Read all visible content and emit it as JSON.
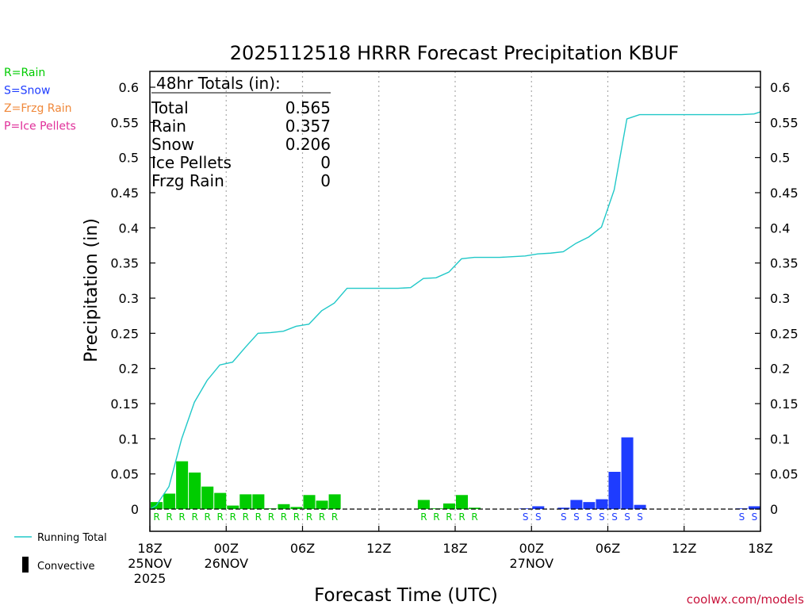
{
  "colors": {
    "rain": "#00cc00",
    "snow": "#1e3cff",
    "frzg": "#f0883a",
    "ice": "#e0309a",
    "running": "#20c8c8",
    "grid": "#aaaaaa"
  },
  "chart_data": {
    "type": "bar",
    "title": "2025112518 HRRR Forecast Precipitation KBUF",
    "xlabel": "Forecast Time (UTC)",
    "ylabel": "Precipitation  (in)",
    "ylim": [
      0,
      0.625
    ],
    "xlim_hours": [
      0,
      48
    ],
    "y_ticks": [
      "0",
      "0.05",
      "0.1",
      "0.15",
      "0.2",
      "0.25",
      "0.3",
      "0.35",
      "0.4",
      "0.45",
      "0.5",
      "0.55",
      "0.6"
    ],
    "x_ticks": [
      {
        "hour": 0,
        "lines": [
          "18Z",
          "25NOV",
          "2025"
        ]
      },
      {
        "hour": 6,
        "lines": [
          "00Z",
          "26NOV"
        ]
      },
      {
        "hour": 12,
        "lines": [
          "06Z"
        ]
      },
      {
        "hour": 18,
        "lines": [
          "12Z"
        ]
      },
      {
        "hour": 24,
        "lines": [
          "18Z"
        ]
      },
      {
        "hour": 30,
        "lines": [
          "00Z",
          "27NOV"
        ]
      },
      {
        "hour": 36,
        "lines": [
          "06Z"
        ]
      },
      {
        "hour": 42,
        "lines": [
          "12Z"
        ]
      },
      {
        "hour": 48,
        "lines": [
          "18Z"
        ]
      }
    ],
    "grid": "vertical-dotted",
    "legend_left": [
      {
        "label": "R=Rain",
        "color": "#00cc00"
      },
      {
        "label": "S=Snow",
        "color": "#1e3cff"
      },
      {
        "label": "Z=Frzg Rain",
        "color": "#f0883a"
      },
      {
        "label": "P=Ice Pellets",
        "color": "#e0309a"
      }
    ],
    "legend_bottom": [
      {
        "label": "Running Total",
        "kind": "line"
      },
      {
        "label": "Convective",
        "kind": "bar"
      }
    ],
    "totals_box": {
      "heading": "48hr Totals (in):",
      "rows": [
        {
          "label": "Total",
          "value": "0.565"
        },
        {
          "label": "Rain",
          "value": "0.357"
        },
        {
          "label": "Snow",
          "value": "0.206"
        },
        {
          "label": "Ice Pellets",
          "value": "0"
        },
        {
          "label": "Frzg Rain",
          "value": "0"
        }
      ]
    },
    "hourly": [
      {
        "h": 1,
        "v": 0.01,
        "t": "R"
      },
      {
        "h": 2,
        "v": 0.022,
        "t": "R"
      },
      {
        "h": 3,
        "v": 0.068,
        "t": "R"
      },
      {
        "h": 4,
        "v": 0.052,
        "t": "R"
      },
      {
        "h": 5,
        "v": 0.032,
        "t": "R"
      },
      {
        "h": 6,
        "v": 0.023,
        "t": "R"
      },
      {
        "h": 7,
        "v": 0.005,
        "t": "R"
      },
      {
        "h": 8,
        "v": 0.021,
        "t": "R"
      },
      {
        "h": 9,
        "v": 0.021,
        "t": "R"
      },
      {
        "h": 10,
        "v": 0.001,
        "t": "R"
      },
      {
        "h": 11,
        "v": 0.007,
        "t": "R"
      },
      {
        "h": 12,
        "v": 0.003,
        "t": "R"
      },
      {
        "h": 13,
        "v": 0.02,
        "t": "R"
      },
      {
        "h": 14,
        "v": 0.012,
        "t": "R"
      },
      {
        "h": 15,
        "v": 0.021,
        "t": "R"
      },
      {
        "h": 22,
        "v": 0.013,
        "t": "R"
      },
      {
        "h": 23,
        "v": 0.001,
        "t": "R"
      },
      {
        "h": 24,
        "v": 0.008,
        "t": "R"
      },
      {
        "h": 25,
        "v": 0.02,
        "t": "R"
      },
      {
        "h": 26,
        "v": 0.002,
        "t": "R"
      },
      {
        "h": 30,
        "v": 0.001,
        "t": "S"
      },
      {
        "h": 31,
        "v": 0.004,
        "t": "S"
      },
      {
        "h": 33,
        "v": 0.002,
        "t": "S"
      },
      {
        "h": 34,
        "v": 0.013,
        "t": "S"
      },
      {
        "h": 35,
        "v": 0.01,
        "t": "S"
      },
      {
        "h": 36,
        "v": 0.014,
        "t": "S"
      },
      {
        "h": 37,
        "v": 0.053,
        "t": "S"
      },
      {
        "h": 38,
        "v": 0.102,
        "t": "S"
      },
      {
        "h": 39,
        "v": 0.006,
        "t": "S"
      },
      {
        "h": 47,
        "v": 0.001,
        "t": "S"
      },
      {
        "h": 48,
        "v": 0.004,
        "t": "S"
      }
    ],
    "running_total": [
      [
        0,
        0
      ],
      [
        0.5,
        0.005
      ],
      [
        1.5,
        0.032
      ],
      [
        2.5,
        0.1
      ],
      [
        3.5,
        0.152
      ],
      [
        4.5,
        0.183
      ],
      [
        5.5,
        0.205
      ],
      [
        6.5,
        0.209
      ],
      [
        7.5,
        0.23
      ],
      [
        8.5,
        0.25
      ],
      [
        9.5,
        0.251
      ],
      [
        10.5,
        0.253
      ],
      [
        11.5,
        0.26
      ],
      [
        12.5,
        0.263
      ],
      [
        13.5,
        0.282
      ],
      [
        14.5,
        0.293
      ],
      [
        15.5,
        0.314
      ],
      [
        16.5,
        0.314
      ],
      [
        17.5,
        0.314
      ],
      [
        18.5,
        0.314
      ],
      [
        19.5,
        0.314
      ],
      [
        20.5,
        0.315
      ],
      [
        21.5,
        0.328
      ],
      [
        22.5,
        0.329
      ],
      [
        23.5,
        0.337
      ],
      [
        24.5,
        0.356
      ],
      [
        25.5,
        0.358
      ],
      [
        26.5,
        0.358
      ],
      [
        27.5,
        0.358
      ],
      [
        28.5,
        0.359
      ],
      [
        29.5,
        0.36
      ],
      [
        30.5,
        0.363
      ],
      [
        31.5,
        0.364
      ],
      [
        32.5,
        0.366
      ],
      [
        33.5,
        0.378
      ],
      [
        34.5,
        0.387
      ],
      [
        35.5,
        0.401
      ],
      [
        36.5,
        0.454
      ],
      [
        37.5,
        0.555
      ],
      [
        38.5,
        0.561
      ],
      [
        39.5,
        0.561
      ],
      [
        40.5,
        0.561
      ],
      [
        41.5,
        0.561
      ],
      [
        42.5,
        0.561
      ],
      [
        43.5,
        0.561
      ],
      [
        44.5,
        0.561
      ],
      [
        45.5,
        0.561
      ],
      [
        46.5,
        0.561
      ],
      [
        47.5,
        0.562
      ],
      [
        48,
        0.565
      ]
    ]
  },
  "credit": "coolwx.com/models"
}
